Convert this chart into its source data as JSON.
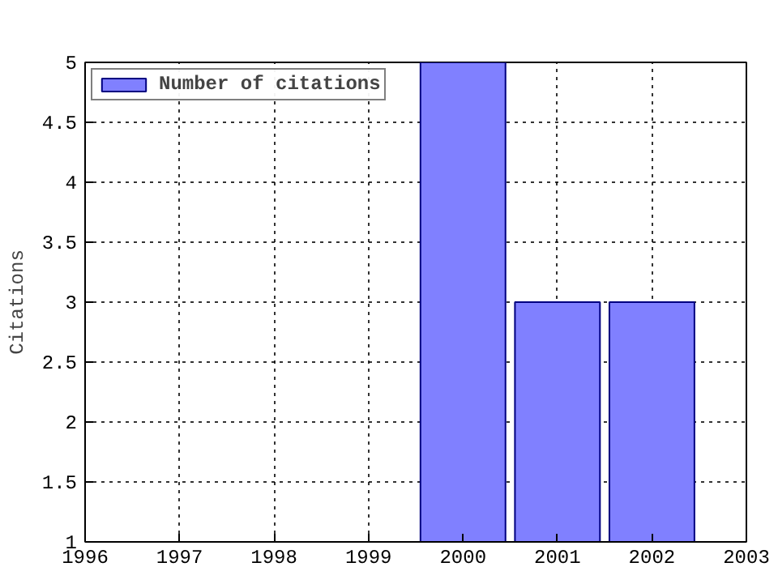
{
  "chart_data": {
    "type": "bar",
    "ylabel": "Citations",
    "x": [
      2000,
      2001,
      2002
    ],
    "series": [
      {
        "name": "Number of citations",
        "color": "#8080ff",
        "values": [
          5,
          3,
          3
        ]
      }
    ],
    "xlim": [
      1996,
      2003
    ],
    "xticks": [
      1996,
      1997,
      1998,
      1999,
      2000,
      2001,
      2002,
      2003
    ],
    "ylim": [
      1,
      5
    ],
    "yticks": [
      1,
      1.5,
      2,
      2.5,
      3,
      3.5,
      4,
      4.5,
      5
    ],
    "grid": true,
    "legend": "top left"
  }
}
